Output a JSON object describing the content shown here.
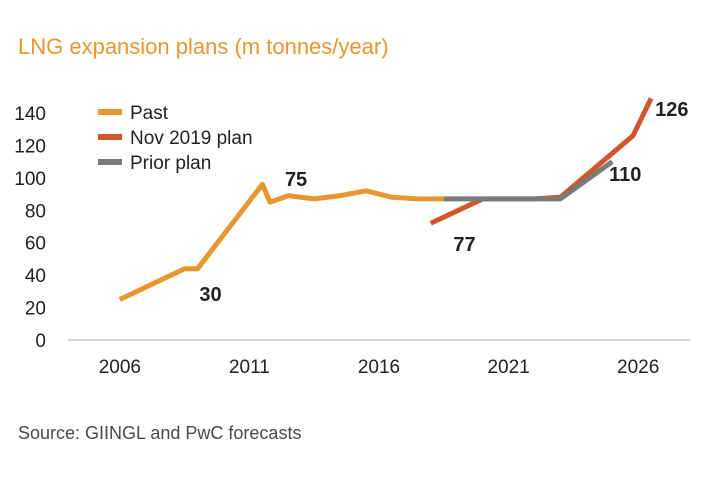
{
  "chart_data": {
    "type": "line",
    "title": "LNG expansion plans (m tonnes/year)",
    "source": "Source: GIINGL and PwC forecasts",
    "xlabel": "",
    "ylabel": "",
    "xlim": [
      2004,
      2028
    ],
    "ylim": [
      0,
      140
    ],
    "x_ticks": [
      "2006",
      "2011",
      "2016",
      "2021",
      "2026"
    ],
    "y_ticks": [
      "0",
      "20",
      "40",
      "60",
      "80",
      "100",
      "120",
      "140"
    ],
    "legend": [
      "Past",
      "Nov 2019 plan",
      "Prior plan"
    ],
    "series": [
      {
        "name": "Past",
        "color": "#e8962f",
        "x": [
          2006,
          2008.5,
          2009,
          2011.5,
          2011.8,
          2012.5,
          2013.5,
          2014.5,
          2015.5,
          2016.5,
          2017.5,
          2018.5
        ],
        "y": [
          25,
          44,
          44,
          96,
          85,
          89,
          87,
          89,
          92,
          88,
          87,
          87
        ]
      },
      {
        "name": "Nov 2019 plan",
        "color": "#d1562a",
        "x": [
          2018,
          2020,
          2022,
          2023,
          2025.8,
          2026.5
        ],
        "y": [
          72,
          87,
          87,
          88,
          126,
          149
        ]
      },
      {
        "name": "Prior plan",
        "color": "#7a7a7a",
        "x": [
          2018.5,
          2021,
          2023,
          2025
        ],
        "y": [
          87,
          87,
          87,
          110
        ]
      }
    ],
    "annotations": [
      {
        "text": "30",
        "x": 2009.5,
        "y": 24
      },
      {
        "text": "75",
        "x": 2012.8,
        "y": 95
      },
      {
        "text": "77",
        "x": 2019.3,
        "y": 55
      },
      {
        "text": "110",
        "x": 2025.5,
        "y": 98
      },
      {
        "text": "126",
        "x": 2027.3,
        "y": 138
      }
    ]
  }
}
